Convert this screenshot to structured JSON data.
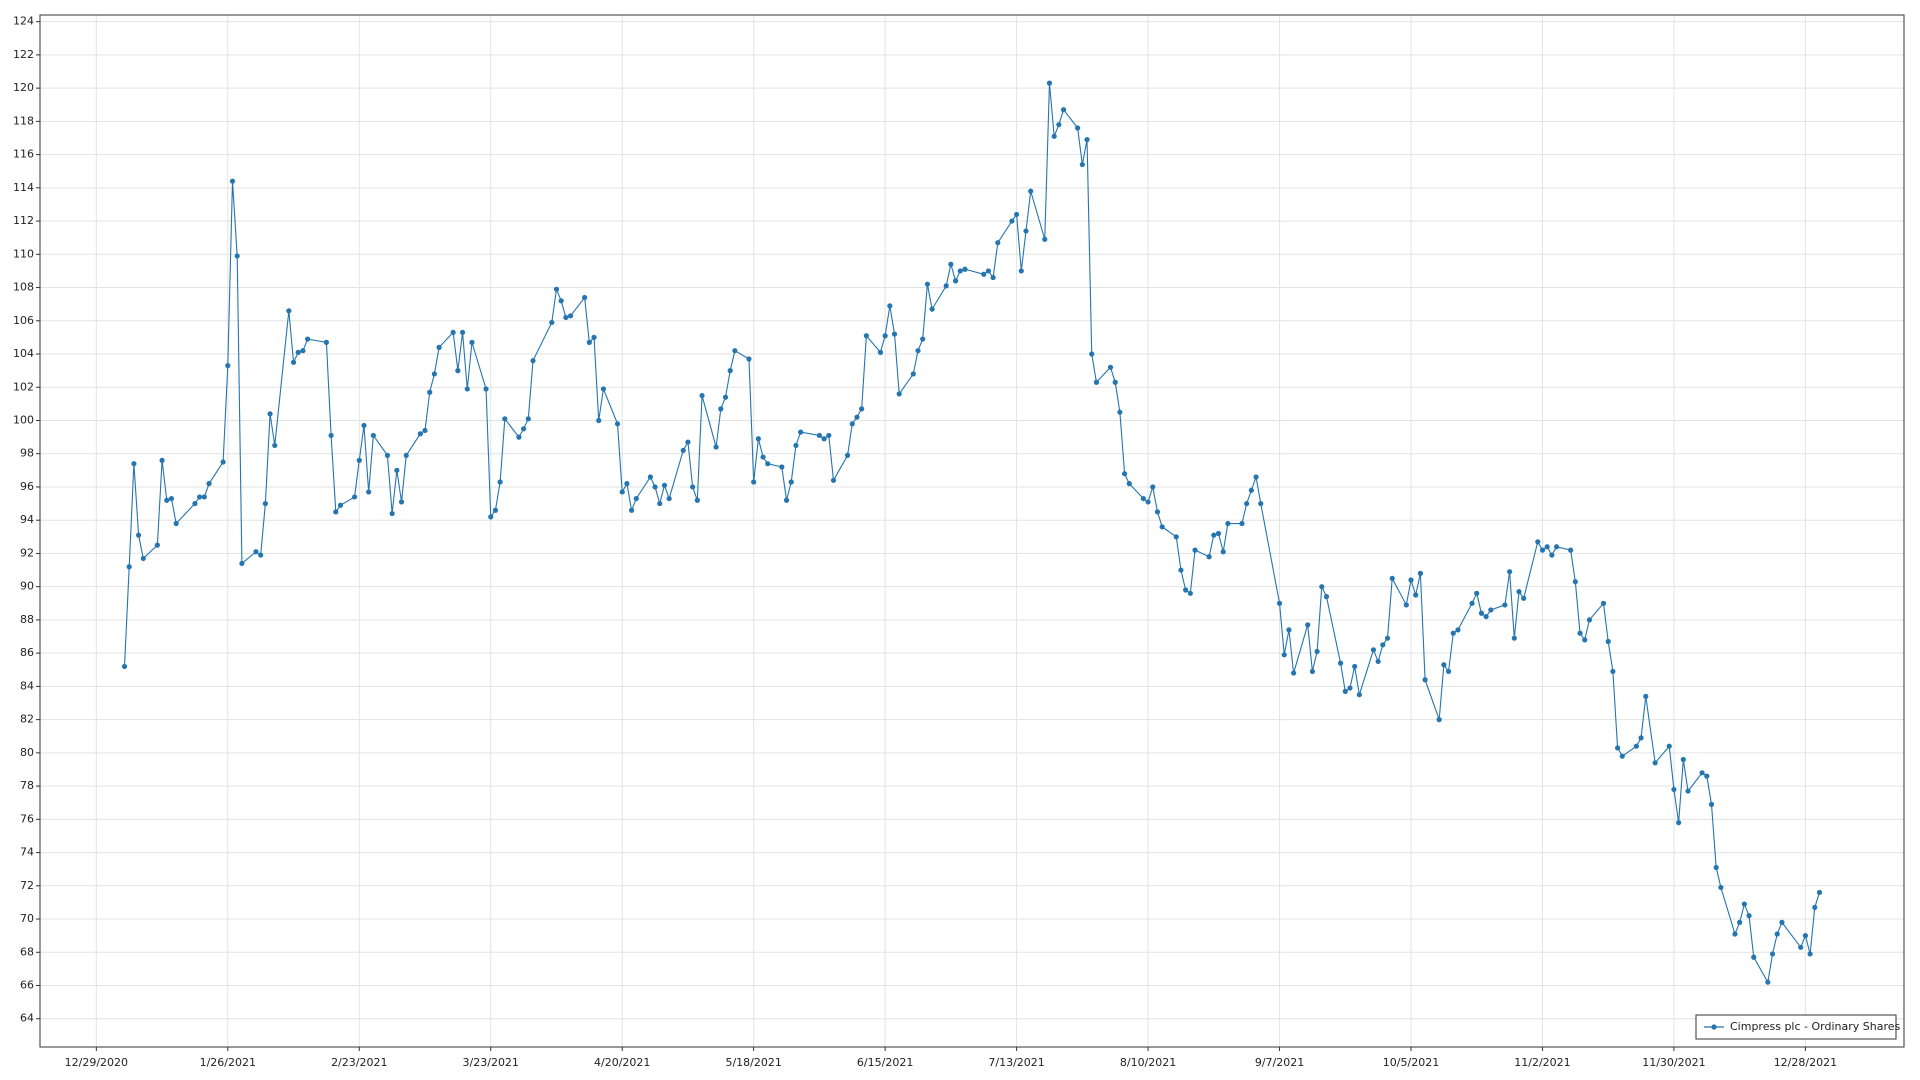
{
  "chart_data": {
    "type": "line",
    "x": [
      "1/4/2021",
      "1/5/2021",
      "1/6/2021",
      "1/7/2021",
      "1/8/2021",
      "1/11/2021",
      "1/12/2021",
      "1/13/2021",
      "1/14/2021",
      "1/15/2021",
      "1/19/2021",
      "1/20/2021",
      "1/21/2021",
      "1/22/2021",
      "1/25/2021",
      "1/26/2021",
      "1/27/2021",
      "1/28/2021",
      "1/29/2021",
      "2/1/2021",
      "2/2/2021",
      "2/3/2021",
      "2/4/2021",
      "2/5/2021",
      "2/8/2021",
      "2/9/2021",
      "2/10/2021",
      "2/11/2021",
      "2/12/2021",
      "2/16/2021",
      "2/17/2021",
      "2/18/2021",
      "2/19/2021",
      "2/22/2021",
      "2/23/2021",
      "2/24/2021",
      "2/25/2021",
      "2/26/2021",
      "3/1/2021",
      "3/2/2021",
      "3/3/2021",
      "3/4/2021",
      "3/5/2021",
      "3/8/2021",
      "3/9/2021",
      "3/10/2021",
      "3/11/2021",
      "3/12/2021",
      "3/15/2021",
      "3/16/2021",
      "3/17/2021",
      "3/18/2021",
      "3/19/2021",
      "3/22/2021",
      "3/23/2021",
      "3/24/2021",
      "3/25/2021",
      "3/26/2021",
      "3/29/2021",
      "3/30/2021",
      "3/31/2021",
      "4/1/2021",
      "4/5/2021",
      "4/6/2021",
      "4/7/2021",
      "4/8/2021",
      "4/9/2021",
      "4/12/2021",
      "4/13/2021",
      "4/14/2021",
      "4/15/2021",
      "4/16/2021",
      "4/19/2021",
      "4/20/2021",
      "4/21/2021",
      "4/22/2021",
      "4/23/2021",
      "4/26/2021",
      "4/27/2021",
      "4/28/2021",
      "4/29/2021",
      "4/30/2021",
      "5/3/2021",
      "5/4/2021",
      "5/5/2021",
      "5/6/2021",
      "5/7/2021",
      "5/10/2021",
      "5/11/2021",
      "5/12/2021",
      "5/13/2021",
      "5/14/2021",
      "5/17/2021",
      "5/18/2021",
      "5/19/2021",
      "5/20/2021",
      "5/21/2021",
      "5/24/2021",
      "5/25/2021",
      "5/26/2021",
      "5/27/2021",
      "5/28/2021",
      "6/1/2021",
      "6/2/2021",
      "6/3/2021",
      "6/4/2021",
      "6/7/2021",
      "6/8/2021",
      "6/9/2021",
      "6/10/2021",
      "6/11/2021",
      "6/14/2021",
      "6/15/2021",
      "6/16/2021",
      "6/17/2021",
      "6/18/2021",
      "6/21/2021",
      "6/22/2021",
      "6/23/2021",
      "6/24/2021",
      "6/25/2021",
      "6/28/2021",
      "6/29/2021",
      "6/30/2021",
      "7/1/2021",
      "7/2/2021",
      "7/6/2021",
      "7/7/2021",
      "7/8/2021",
      "7/9/2021",
      "7/12/2021",
      "7/13/2021",
      "7/14/2021",
      "7/15/2021",
      "7/16/2021",
      "7/19/2021",
      "7/20/2021",
      "7/21/2021",
      "7/22/2021",
      "7/23/2021",
      "7/26/2021",
      "7/27/2021",
      "7/28/2021",
      "7/29/2021",
      "7/30/2021",
      "8/2/2021",
      "8/3/2021",
      "8/4/2021",
      "8/5/2021",
      "8/6/2021",
      "8/9/2021",
      "8/10/2021",
      "8/11/2021",
      "8/12/2021",
      "8/13/2021",
      "8/16/2021",
      "8/17/2021",
      "8/18/2021",
      "8/19/2021",
      "8/20/2021",
      "8/23/2021",
      "8/24/2021",
      "8/25/2021",
      "8/26/2021",
      "8/27/2021",
      "8/30/2021",
      "8/31/2021",
      "9/1/2021",
      "9/2/2021",
      "9/3/2021",
      "9/7/2021",
      "9/8/2021",
      "9/9/2021",
      "9/10/2021",
      "9/13/2021",
      "9/14/2021",
      "9/15/2021",
      "9/16/2021",
      "9/17/2021",
      "9/20/2021",
      "9/21/2021",
      "9/22/2021",
      "9/23/2021",
      "9/24/2021",
      "9/27/2021",
      "9/28/2021",
      "9/29/2021",
      "9/30/2021",
      "10/1/2021",
      "10/4/2021",
      "10/5/2021",
      "10/6/2021",
      "10/7/2021",
      "10/8/2021",
      "10/11/2021",
      "10/12/2021",
      "10/13/2021",
      "10/14/2021",
      "10/15/2021",
      "10/18/2021",
      "10/19/2021",
      "10/20/2021",
      "10/21/2021",
      "10/22/2021",
      "10/25/2021",
      "10/26/2021",
      "10/27/2021",
      "10/28/2021",
      "10/29/2021",
      "11/1/2021",
      "11/2/2021",
      "11/3/2021",
      "11/4/2021",
      "11/5/2021",
      "11/8/2021",
      "11/9/2021",
      "11/10/2021",
      "11/11/2021",
      "11/12/2021",
      "11/15/2021",
      "11/16/2021",
      "11/17/2021",
      "11/18/2021",
      "11/19/2021",
      "11/22/2021",
      "11/23/2021",
      "11/24/2021",
      "11/26/2021",
      "11/29/2021",
      "11/30/2021",
      "12/1/2021",
      "12/2/2021",
      "12/3/2021",
      "12/6/2021",
      "12/7/2021",
      "12/8/2021",
      "12/9/2021",
      "12/10/2021",
      "12/13/2021",
      "12/14/2021",
      "12/15/2021",
      "12/16/2021",
      "12/17/2021",
      "12/20/2021",
      "12/21/2021",
      "12/22/2021",
      "12/23/2021",
      "12/27/2021",
      "12/28/2021",
      "12/29/2021",
      "12/30/2021",
      "12/31/2021"
    ],
    "series": [
      {
        "name": "Cimpress plc - Ordinary Shares",
        "color": "#2475b0",
        "values": [
          85.2,
          91.2,
          97.4,
          93.1,
          91.7,
          92.5,
          97.6,
          95.2,
          95.3,
          93.8,
          95.0,
          95.4,
          95.4,
          96.2,
          97.5,
          103.3,
          114.4,
          109.9,
          91.4,
          92.1,
          91.9,
          95.0,
          100.4,
          98.5,
          106.6,
          103.5,
          104.1,
          104.2,
          104.9,
          104.7,
          99.1,
          94.5,
          94.9,
          95.4,
          97.6,
          99.7,
          95.7,
          99.1,
          97.9,
          94.4,
          97.0,
          95.1,
          97.9,
          99.2,
          99.4,
          101.7,
          102.8,
          104.4,
          105.3,
          103.0,
          105.3,
          101.9,
          104.7,
          101.9,
          94.2,
          94.6,
          96.3,
          100.1,
          99.0,
          99.5,
          100.1,
          103.6,
          105.9,
          107.9,
          107.2,
          106.2,
          106.3,
          107.4,
          104.7,
          105.0,
          100.0,
          101.9,
          99.8,
          95.7,
          96.2,
          94.6,
          95.3,
          96.6,
          96.0,
          95.0,
          96.1,
          95.3,
          98.2,
          98.7,
          96.0,
          95.2,
          101.5,
          98.4,
          100.7,
          101.4,
          103.0,
          104.2,
          103.7,
          96.3,
          98.9,
          97.8,
          97.4,
          97.2,
          95.2,
          96.3,
          98.5,
          99.3,
          99.1,
          98.9,
          99.1,
          96.4,
          97.9,
          99.8,
          100.2,
          100.7,
          105.1,
          104.1,
          105.1,
          106.9,
          105.2,
          101.6,
          102.8,
          104.2,
          104.9,
          108.2,
          106.7,
          108.1,
          109.4,
          108.4,
          109.0,
          109.1,
          108.8,
          109.0,
          108.6,
          110.7,
          112.0,
          112.4,
          109.0,
          111.4,
          113.8,
          110.9,
          120.3,
          117.1,
          117.8,
          118.7,
          117.6,
          115.4,
          116.9,
          104.0,
          102.3,
          103.2,
          102.3,
          100.5,
          96.8,
          96.2,
          95.3,
          95.1,
          96.0,
          94.5,
          93.6,
          93.0,
          91.0,
          89.8,
          89.6,
          92.2,
          91.8,
          93.1,
          93.2,
          92.1,
          93.8,
          93.8,
          95.0,
          95.8,
          96.6,
          95.0,
          89.0,
          85.9,
          87.4,
          84.8,
          87.7,
          84.9,
          86.1,
          90.0,
          89.4,
          85.4,
          83.7,
          83.9,
          85.2,
          83.5,
          86.2,
          85.5,
          86.5,
          86.9,
          90.5,
          88.9,
          90.4,
          89.5,
          90.8,
          84.4,
          82.0,
          85.3,
          84.9,
          87.2,
          87.4,
          89.0,
          89.6,
          88.4,
          88.2,
          88.6,
          88.9,
          90.9,
          86.9,
          89.7,
          89.3,
          92.7,
          92.2,
          92.4,
          91.9,
          92.4,
          92.2,
          90.3,
          87.2,
          86.8,
          88.0,
          89.0,
          86.7,
          84.9,
          80.3,
          79.8,
          80.4,
          80.9,
          83.4,
          79.4,
          80.4,
          77.8,
          75.8,
          79.6,
          77.7,
          78.8,
          78.6,
          76.9,
          73.1,
          71.9,
          69.1,
          69.8,
          70.9,
          70.2,
          67.7,
          66.2,
          67.9,
          69.1,
          69.8,
          68.3,
          69.0,
          67.9,
          70.7,
          71.6
        ]
      }
    ],
    "xlim": [
      "12/17/2020",
      "1/18/2022"
    ],
    "xticks": [
      "12/29/2020",
      "1/26/2021",
      "2/23/2021",
      "3/23/2021",
      "4/20/2021",
      "5/18/2021",
      "6/15/2021",
      "7/13/2021",
      "8/10/2021",
      "9/7/2021",
      "10/5/2021",
      "11/2/2021",
      "11/30/2021",
      "12/28/2021"
    ],
    "ylim": [
      62.3,
      124.4
    ],
    "yticks": [
      64,
      66,
      68,
      70,
      72,
      74,
      76,
      78,
      80,
      82,
      84,
      86,
      88,
      90,
      92,
      94,
      96,
      98,
      100,
      102,
      104,
      106,
      108,
      110,
      112,
      114,
      116,
      118,
      120,
      122,
      124
    ],
    "grid": true,
    "markers": true,
    "legend": "lower right"
  }
}
